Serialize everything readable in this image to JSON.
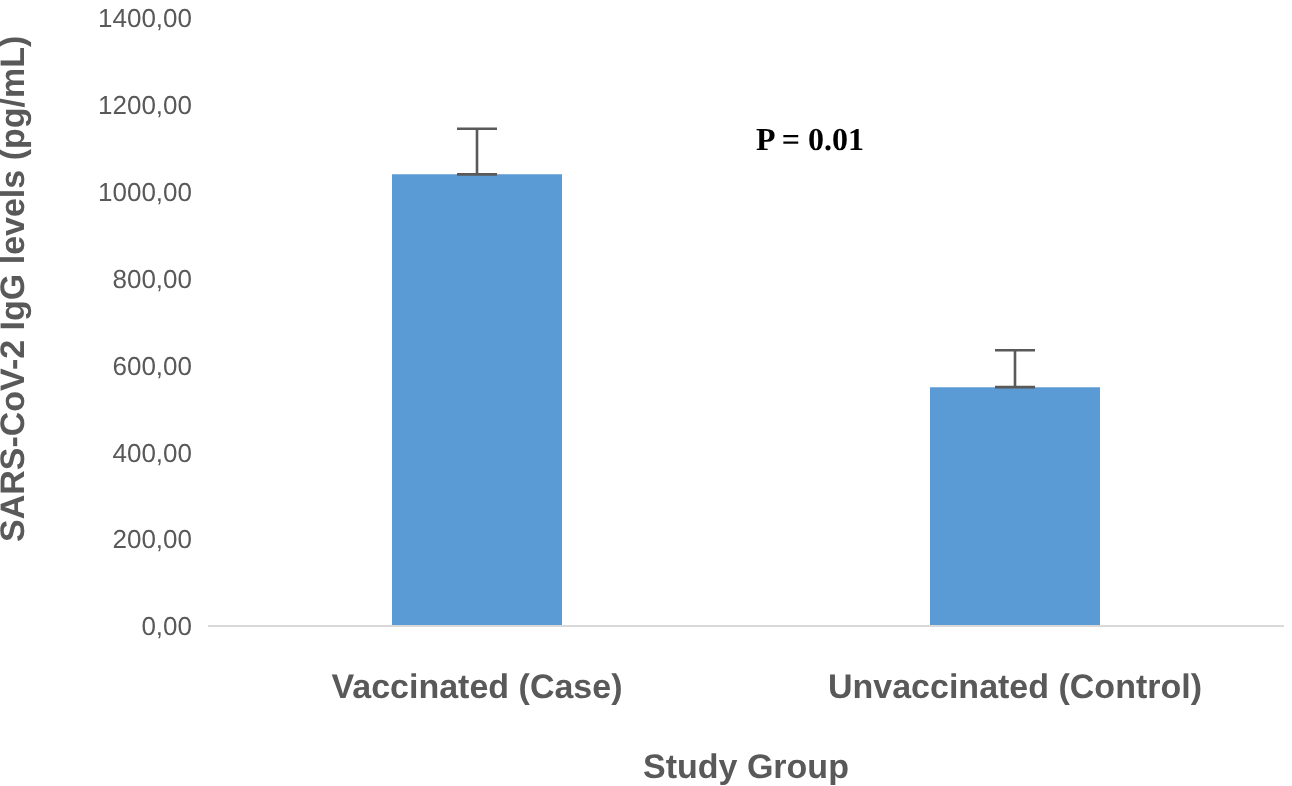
{
  "chart_data": {
    "type": "bar",
    "categories": [
      "Vaccinated (Case)",
      "Unvaccinated (Control)"
    ],
    "values": [
      1040,
      550
    ],
    "errors": [
      [
        1040,
        1145
      ],
      [
        550,
        635
      ]
    ],
    "color": "#5b9bd5",
    "ylabel": "SARS-CoV-2 IgG levels (pg/mL)",
    "xlabel": "Study Group",
    "ylim": [
      0,
      1400
    ],
    "yticks": [
      {
        "value": 0,
        "label": "0,00"
      },
      {
        "value": 200,
        "label": "200,00"
      },
      {
        "value": 400,
        "label": "400,00"
      },
      {
        "value": 600,
        "label": "600,00"
      },
      {
        "value": 800,
        "label": "800,00"
      },
      {
        "value": 1000,
        "label": "1000,00"
      },
      {
        "value": 1200,
        "label": "1200,00"
      },
      {
        "value": 1400,
        "label": "1400,00"
      }
    ],
    "annotations": [
      "P = 0.01"
    ],
    "grid": false,
    "legend": false
  }
}
